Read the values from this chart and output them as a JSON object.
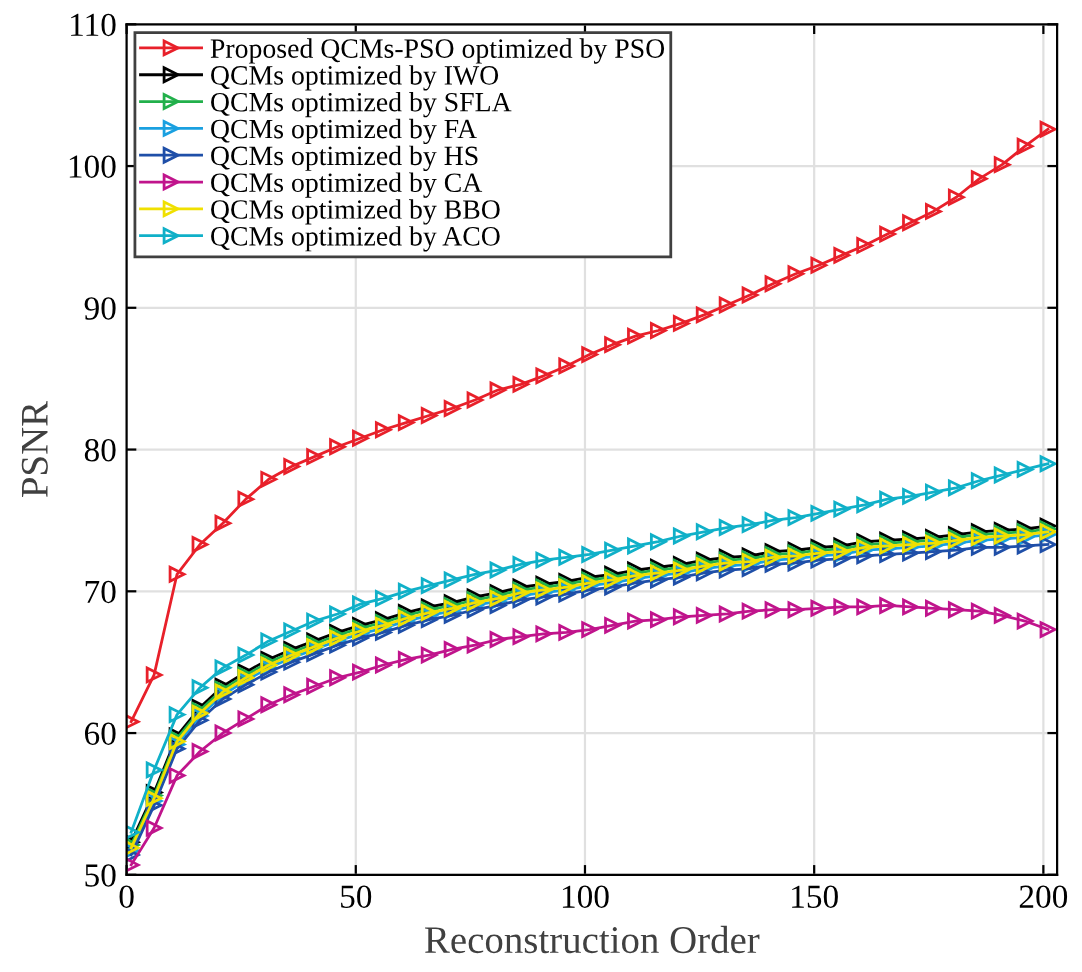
{
  "chart_data": {
    "type": "line",
    "xlabel": "Reconstruction Order",
    "ylabel": "PSNR",
    "x": [
      1,
      6,
      11,
      16,
      21,
      26,
      31,
      36,
      41,
      46,
      51,
      56,
      61,
      66,
      71,
      76,
      81,
      86,
      91,
      96,
      101,
      106,
      111,
      116,
      121,
      126,
      131,
      136,
      141,
      146,
      151,
      156,
      161,
      166,
      171,
      176,
      181,
      186,
      191,
      196,
      201
    ],
    "xlim": [
      0,
      203
    ],
    "xticks": [
      0,
      50,
      100,
      150,
      200
    ],
    "ylim": [
      50,
      110
    ],
    "yticks": [
      50,
      60,
      70,
      80,
      90,
      100,
      110
    ],
    "grid": true,
    "legend": "top left",
    "marker": "triangle",
    "line_style": "solid",
    "series": [
      {
        "name": "Proposed QCMs-PSO optimized by PSO",
        "color": "#e8202a",
        "values": [
          60.8,
          64.1,
          71.2,
          73.3,
          74.8,
          76.5,
          77.9,
          78.8,
          79.5,
          80.2,
          80.8,
          81.4,
          81.9,
          82.4,
          82.9,
          83.5,
          84.2,
          84.6,
          85.2,
          85.9,
          86.7,
          87.4,
          88.0,
          88.4,
          88.9,
          89.5,
          90.2,
          90.9,
          91.7,
          92.4,
          93.0,
          93.7,
          94.4,
          95.2,
          96.0,
          96.8,
          97.8,
          99.1,
          100.1,
          101.4,
          102.6
        ]
      },
      {
        "name": "QCMs optimized by IWO",
        "color": "#000000",
        "values": [
          52.3,
          55.8,
          59.8,
          61.8,
          63.3,
          64.3,
          65.2,
          65.9,
          66.5,
          67.1,
          67.6,
          68.0,
          68.5,
          68.9,
          69.2,
          69.6,
          69.9,
          70.3,
          70.5,
          70.7,
          71.0,
          71.2,
          71.5,
          71.7,
          71.9,
          72.2,
          72.4,
          72.5,
          72.8,
          72.9,
          73.1,
          73.2,
          73.5,
          73.6,
          73.7,
          73.8,
          74.0,
          74.2,
          74.3,
          74.4,
          74.6
        ]
      },
      {
        "name": "QCMs optimized by SFLA",
        "color": "#22b04b",
        "values": [
          52.1,
          55.6,
          59.6,
          61.6,
          63.1,
          64.1,
          65.0,
          65.7,
          66.3,
          66.9,
          67.4,
          67.8,
          68.3,
          68.7,
          69.0,
          69.4,
          69.7,
          70.1,
          70.3,
          70.5,
          70.8,
          71.0,
          71.3,
          71.5,
          71.7,
          72.0,
          72.2,
          72.3,
          72.6,
          72.7,
          72.9,
          73.0,
          73.3,
          73.4,
          73.5,
          73.6,
          73.8,
          74.0,
          74.1,
          74.2,
          74.4
        ]
      },
      {
        "name": "QCMs optimized by FA",
        "color": "#1aa0e0",
        "values": [
          51.7,
          55.2,
          59.2,
          61.2,
          62.7,
          63.7,
          64.6,
          65.3,
          65.9,
          66.5,
          67.0,
          67.4,
          67.9,
          68.3,
          68.6,
          69.0,
          69.3,
          69.7,
          69.9,
          70.1,
          70.4,
          70.6,
          70.9,
          71.1,
          71.3,
          71.6,
          71.8,
          71.9,
          72.2,
          72.3,
          72.5,
          72.6,
          72.9,
          73.0,
          73.1,
          73.2,
          73.4,
          73.6,
          73.7,
          73.8,
          74.0
        ]
      },
      {
        "name": "QCMs optimized by HS",
        "color": "#1f4fa8",
        "values": [
          51.4,
          54.9,
          58.9,
          60.9,
          62.4,
          63.4,
          64.3,
          65.0,
          65.6,
          66.2,
          66.7,
          67.1,
          67.6,
          68.0,
          68.3,
          68.7,
          69.0,
          69.4,
          69.6,
          69.8,
          70.1,
          70.3,
          70.6,
          70.8,
          71.0,
          71.3,
          71.5,
          71.6,
          71.9,
          72.0,
          72.2,
          72.3,
          72.5,
          72.6,
          72.7,
          72.8,
          72.9,
          73.1,
          73.1,
          73.2,
          73.3
        ]
      },
      {
        "name": "QCMs optimized by CA",
        "color": "#c0148c",
        "values": [
          50.7,
          53.3,
          57.0,
          58.7,
          60.0,
          61.0,
          62.0,
          62.7,
          63.3,
          63.9,
          64.3,
          64.8,
          65.2,
          65.5,
          65.9,
          66.2,
          66.6,
          66.8,
          67.0,
          67.1,
          67.3,
          67.6,
          67.9,
          68.0,
          68.2,
          68.3,
          68.4,
          68.6,
          68.7,
          68.7,
          68.8,
          68.9,
          68.9,
          69.0,
          68.9,
          68.8,
          68.7,
          68.6,
          68.3,
          67.9,
          67.3
        ]
      },
      {
        "name": "QCMs optimized by BBO",
        "color": "#f0e000",
        "values": [
          51.9,
          55.4,
          59.4,
          61.4,
          62.9,
          63.9,
          64.8,
          65.5,
          66.1,
          66.7,
          67.2,
          67.6,
          68.1,
          68.5,
          68.8,
          69.2,
          69.5,
          69.9,
          70.1,
          70.3,
          70.6,
          70.8,
          71.1,
          71.3,
          71.5,
          71.8,
          72.0,
          72.1,
          72.4,
          72.5,
          72.7,
          72.8,
          73.1,
          73.2,
          73.3,
          73.4,
          73.6,
          73.8,
          73.9,
          74.0,
          74.2
        ]
      },
      {
        "name": "QCMs optimized by ACO",
        "color": "#10b0c8",
        "values": [
          53.0,
          57.4,
          61.3,
          63.2,
          64.6,
          65.5,
          66.5,
          67.2,
          67.9,
          68.4,
          69.1,
          69.5,
          70.0,
          70.4,
          70.8,
          71.2,
          71.5,
          71.9,
          72.2,
          72.4,
          72.6,
          72.9,
          73.2,
          73.5,
          73.9,
          74.2,
          74.5,
          74.7,
          75.0,
          75.2,
          75.5,
          75.8,
          76.1,
          76.5,
          76.7,
          77.0,
          77.3,
          77.8,
          78.2,
          78.6,
          79.0
        ]
      }
    ]
  }
}
